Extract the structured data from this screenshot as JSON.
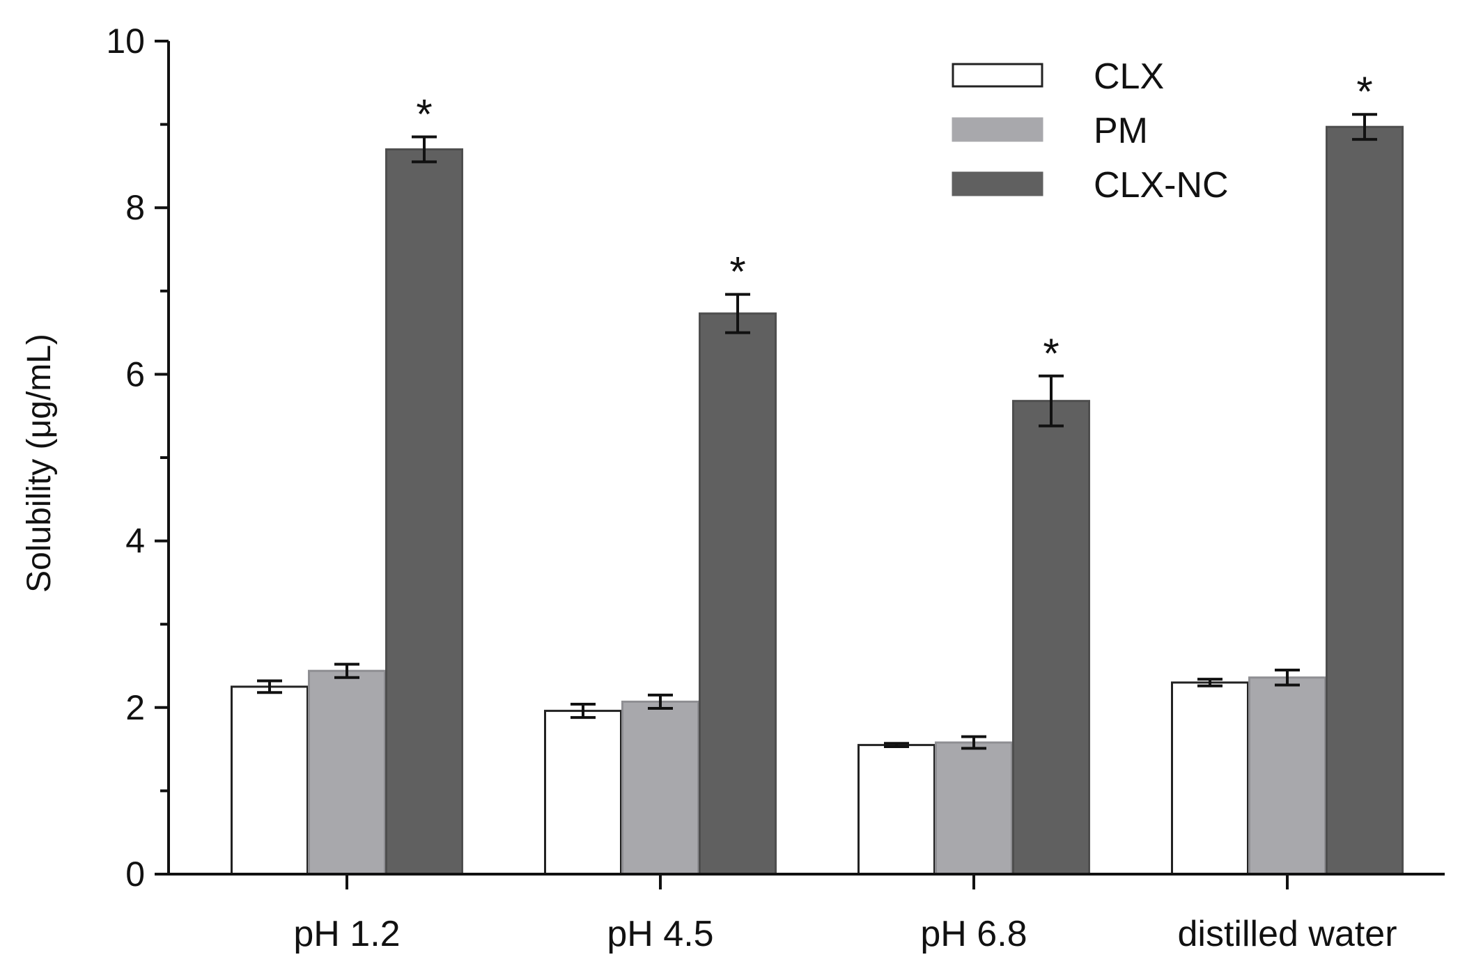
{
  "chart_data": {
    "type": "bar",
    "title": "",
    "xlabel": "",
    "ylabel": "Solubility (μg/mL)",
    "ylim": [
      0,
      10
    ],
    "yticks": [
      0,
      2,
      4,
      6,
      8,
      10
    ],
    "categories": [
      "pH 1.2",
      "pH 4.5",
      "pH 6.8",
      "distilled water"
    ],
    "series": [
      {
        "name": "CLX",
        "color": "#ffffff",
        "values": [
          2.25,
          1.96,
          1.55,
          2.3
        ],
        "errors": [
          0.07,
          0.08,
          0.02,
          0.04
        ]
      },
      {
        "name": "PM",
        "color": "#a8a8ac",
        "values": [
          2.44,
          2.07,
          1.58,
          2.36
        ],
        "errors": [
          0.08,
          0.08,
          0.07,
          0.09
        ]
      },
      {
        "name": "CLX-NC",
        "color": "#606060",
        "values": [
          8.7,
          6.73,
          5.68,
          8.97
        ],
        "errors": [
          0.15,
          0.23,
          0.3,
          0.15
        ]
      }
    ],
    "annotations": [
      "*",
      "*",
      "*",
      "*"
    ],
    "legend_position": "top-right"
  }
}
